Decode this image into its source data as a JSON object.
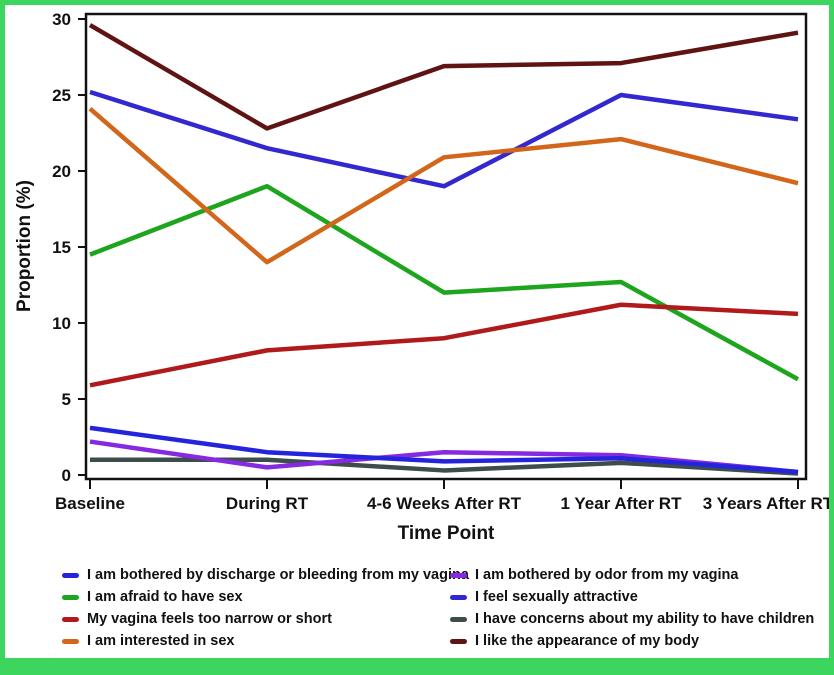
{
  "figure": {
    "border_color": "#3cd65e",
    "background": "#ffffff",
    "axis_color": "#111111"
  },
  "chart_data": {
    "type": "line",
    "title": "",
    "xlabel": "Time Point",
    "ylabel": "Proportion (%)",
    "ylim": [
      0,
      30
    ],
    "yticks": [
      0,
      5,
      10,
      15,
      20,
      25,
      30
    ],
    "grid": false,
    "legend_position": "bottom, two columns",
    "categories": [
      "Baseline",
      "During RT",
      "4-6 Weeks After RT",
      "1 Year After RT",
      "3 Years After RT"
    ],
    "series": [
      {
        "name": "I am bothered by discharge or bleeding from my vagina",
        "color": "#2424dd",
        "values": [
          3.1,
          1.5,
          0.9,
          1.1,
          0.2
        ]
      },
      {
        "name": "I am afraid to have sex",
        "color": "#1ea51e",
        "values": [
          14.5,
          19.0,
          12.0,
          12.7,
          6.3
        ]
      },
      {
        "name": "My vagina feels too narrow or short",
        "color": "#b01a1a",
        "values": [
          5.9,
          8.2,
          9.0,
          11.2,
          10.6
        ]
      },
      {
        "name": "I am interested in sex",
        "color": "#d2661a",
        "values": [
          24.1,
          14.0,
          20.9,
          22.1,
          19.2
        ]
      },
      {
        "name": "I am bothered by odor from my vagina",
        "color": "#8629e0",
        "values": [
          2.2,
          0.5,
          1.5,
          1.3,
          0.2
        ]
      },
      {
        "name": "I feel sexually attractive",
        "color": "#3327cf",
        "values": [
          25.2,
          21.5,
          19.0,
          25.0,
          23.4
        ]
      },
      {
        "name": "I have concerns about my ability to have children",
        "color": "#3e4c4c",
        "values": [
          1.0,
          1.0,
          0.3,
          0.8,
          0.1
        ]
      },
      {
        "name": "I like the appearance of my body",
        "color": "#601313",
        "values": [
          29.6,
          22.8,
          26.9,
          27.1,
          29.1
        ]
      }
    ],
    "z_order": [
      1,
      5,
      3,
      2,
      6,
      4,
      0,
      7
    ]
  }
}
